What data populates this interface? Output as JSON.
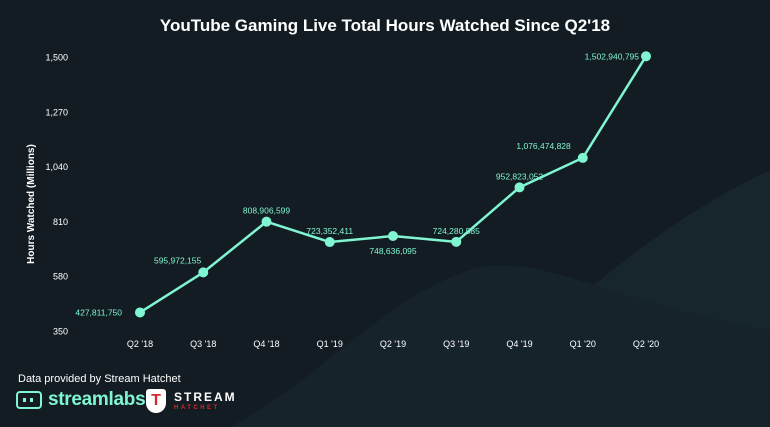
{
  "chart_data": {
    "type": "line",
    "title": "YouTube Gaming Live Total Hours Watched Since Q2'18",
    "ylabel": "Hours Watched (Millions)",
    "xlabel": "",
    "categories": [
      "Q2 '18",
      "Q3 '18",
      "Q4 '18",
      "Q1 '19",
      "Q2 '19",
      "Q3 '19",
      "Q4 '19",
      "Q1 '20",
      "Q2 '20"
    ],
    "series": [
      {
        "name": "",
        "values": [
          427811750,
          595972155,
          808906599,
          723352411,
          748636095,
          724280585,
          952823052,
          1076474828,
          1502940795
        ],
        "labels": [
          "427,811,750",
          "595,972,155",
          "808,906,599",
          "723,352,411",
          "748,636,095",
          "724,280,585",
          "952,823,052",
          "1,076,474,828",
          "1,502,940,795"
        ]
      }
    ],
    "yticks": [
      "350",
      "580",
      "810",
      "1,040",
      "1,270",
      "1,500"
    ],
    "ytick_values": [
      350,
      580,
      810,
      1040,
      1270,
      1500
    ],
    "ylim": [
      350,
      1500
    ],
    "grid": false,
    "line_color": "#80f5d2"
  },
  "footer": {
    "note": "Data provided by Stream Hatchet",
    "logo_streamlabs": "streamlabs",
    "logo_stream_hatchet_1": "STREAM",
    "logo_stream_hatchet_2": "HATCHET",
    "logo_stream_hatchet_badge": "T"
  }
}
